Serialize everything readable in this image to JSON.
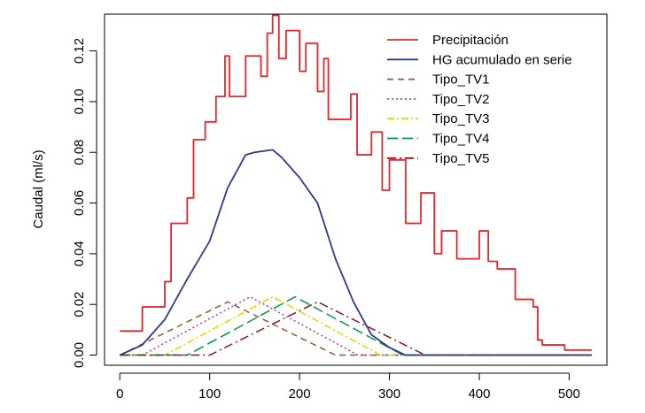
{
  "chart_data": {
    "type": "line",
    "title": "",
    "xlabel": "",
    "ylabel": "Caudal (ml/s)",
    "xlim": [
      -17,
      542
    ],
    "ylim": [
      -0.004,
      0.1345
    ],
    "xticks": [
      0,
      100,
      200,
      300,
      400,
      500
    ],
    "yticks": [
      0.0,
      0.02,
      0.04,
      0.06,
      0.08,
      0.1,
      0.12
    ],
    "ytick_labels": [
      "0.00",
      "0.02",
      "0.04",
      "0.06",
      "0.08",
      "0.10",
      "0.12"
    ],
    "grid": false,
    "legend_position": "top-right",
    "series": [
      {
        "name": "Precipitación",
        "color": "#e8262a",
        "dash": "solid",
        "step": true,
        "x": [
          0,
          25,
          50,
          57,
          75,
          82,
          95,
          107,
          117,
          122,
          140,
          157,
          164,
          170,
          177,
          185,
          200,
          207,
          220,
          227,
          232,
          240,
          257,
          264,
          280,
          292,
          300,
          318,
          335,
          350,
          358,
          375,
          395,
          400,
          410,
          420,
          430,
          440,
          460,
          465,
          470,
          480,
          495,
          525
        ],
        "y": [
          0.0095,
          0.019,
          0.029,
          0.052,
          0.062,
          0.085,
          0.092,
          0.102,
          0.118,
          0.102,
          0.118,
          0.11,
          0.127,
          0.134,
          0.117,
          0.128,
          0.112,
          0.123,
          0.104,
          0.117,
          0.093,
          0.093,
          0.103,
          0.079,
          0.088,
          0.065,
          0.077,
          0.052,
          0.064,
          0.04,
          0.049,
          0.038,
          0.038,
          0.049,
          0.037,
          0.034,
          0.034,
          0.022,
          0.019,
          0.006,
          0.004,
          0.004,
          0.002,
          0.002
        ]
      },
      {
        "name": "HG acumulado en serie",
        "color": "#2b3990",
        "dash": "solid",
        "step": false,
        "x": [
          0,
          25,
          50,
          75,
          100,
          120,
          140,
          150,
          170,
          180,
          200,
          220,
          240,
          260,
          280,
          300,
          318,
          330,
          360,
          400,
          450,
          525
        ],
        "y": [
          0,
          0.004,
          0.014,
          0.03,
          0.045,
          0.066,
          0.079,
          0.08,
          0.081,
          0.078,
          0.07,
          0.06,
          0.038,
          0.021,
          0.008,
          0.003,
          0,
          0,
          0,
          0,
          0,
          0
        ]
      },
      {
        "name": "Tipo_TV1",
        "color": "#a0522d",
        "dash": "7,5",
        "step": false,
        "x": [
          0,
          120,
          240,
          525
        ],
        "y": [
          0,
          0.021,
          0,
          0
        ]
      },
      {
        "name": "Tipo_TV2",
        "color": "#b03a9a",
        "dash": "2,3",
        "step": false,
        "x": [
          0,
          25,
          145,
          265,
          525
        ],
        "y": [
          0,
          0,
          0.023,
          0,
          0
        ]
      },
      {
        "name": "Tipo_TV3",
        "color": "#d8d800",
        "dash": "8,3,2,3",
        "step": false,
        "x": [
          0,
          50,
          170,
          290,
          525
        ],
        "y": [
          0,
          0,
          0.023,
          0,
          0
        ]
      },
      {
        "name": "Tipo_TV4",
        "color": "#009944",
        "dash": "12,5",
        "step": false,
        "x": [
          0,
          75,
          195,
          315,
          525
        ],
        "y": [
          0,
          0,
          0.023,
          0,
          0
        ]
      },
      {
        "name": "Tipo_TV5",
        "color": "#8b1a1a",
        "dash": "10,4,2,4",
        "step": false,
        "x": [
          0,
          100,
          220,
          340,
          525
        ],
        "y": [
          0,
          0,
          0.021,
          0,
          0
        ]
      }
    ]
  }
}
